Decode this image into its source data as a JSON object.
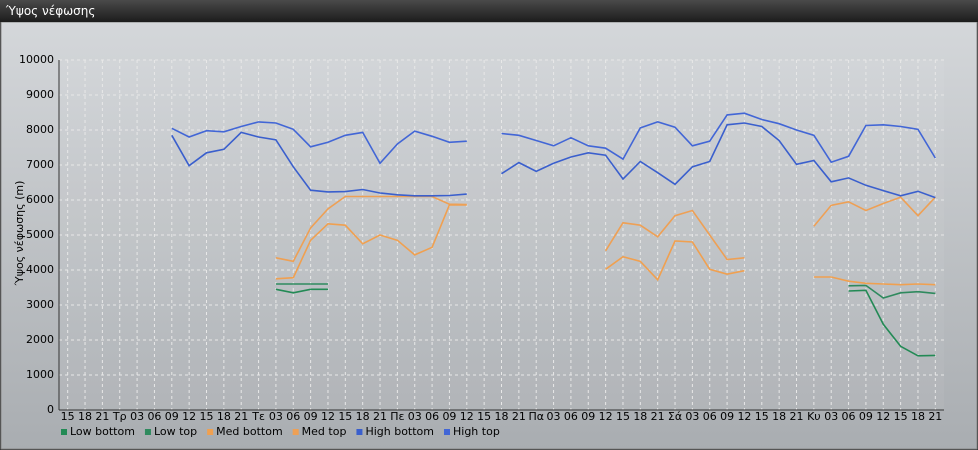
{
  "window": {
    "title": "Ύψος νέφωσης"
  },
  "chart_data": {
    "type": "line",
    "y_label": "Ύψος νέφωσης (m)",
    "categories": [
      "15",
      "18",
      "21",
      "Τρ",
      "03",
      "06",
      "09",
      "12",
      "15",
      "18",
      "21",
      "Τε",
      "03",
      "06",
      "09",
      "12",
      "15",
      "18",
      "21",
      "Πε",
      "03",
      "06",
      "09",
      "12",
      "15",
      "18",
      "21",
      "Πα",
      "03",
      "06",
      "09",
      "12",
      "15",
      "18",
      "21",
      "Σά",
      "03",
      "06",
      "09",
      "12",
      "15",
      "18",
      "21",
      "Κυ",
      "03",
      "06",
      "09",
      "12",
      "15",
      "18",
      "21"
    ],
    "ylim": [
      0,
      10000
    ],
    "yticks": [
      0,
      1000,
      2000,
      3000,
      4000,
      5000,
      6000,
      7000,
      8000,
      9000,
      10000
    ],
    "grid": true,
    "legend": "bottom",
    "series": [
      {
        "name": "Low bottom",
        "color": "#238a55",
        "values": [
          null,
          null,
          null,
          null,
          null,
          null,
          null,
          null,
          null,
          null,
          null,
          null,
          3450,
          3350,
          3450,
          3450,
          null,
          null,
          null,
          null,
          null,
          null,
          null,
          null,
          null,
          null,
          null,
          null,
          null,
          null,
          null,
          null,
          null,
          null,
          null,
          null,
          null,
          null,
          null,
          null,
          null,
          null,
          null,
          null,
          null,
          3400,
          3420,
          2450,
          1820,
          1550,
          1560
        ]
      },
      {
        "name": "Low top",
        "color": "#2f8a5e",
        "values": [
          null,
          null,
          null,
          null,
          null,
          null,
          null,
          null,
          null,
          null,
          null,
          null,
          3600,
          3600,
          3600,
          3600,
          null,
          null,
          null,
          null,
          null,
          null,
          null,
          null,
          null,
          null,
          null,
          null,
          null,
          null,
          null,
          null,
          null,
          null,
          null,
          null,
          null,
          null,
          null,
          null,
          null,
          null,
          null,
          null,
          null,
          3550,
          3560,
          3200,
          3350,
          3380,
          3330
        ]
      },
      {
        "name": "Med bottom",
        "color": "#f0a050",
        "values": [
          null,
          null,
          null,
          null,
          null,
          null,
          null,
          null,
          null,
          null,
          null,
          null,
          3750,
          3780,
          4850,
          5320,
          5280,
          4750,
          5000,
          4850,
          4430,
          4650,
          5860,
          5860,
          null,
          null,
          null,
          null,
          null,
          null,
          null,
          4020,
          4380,
          4250,
          3720,
          4830,
          4800,
          4020,
          3880,
          3980,
          null,
          null,
          null,
          3800,
          3800,
          3680,
          3620,
          3600,
          3580,
          3600,
          3580
        ]
      },
      {
        "name": "Med top",
        "color": "#eea055",
        "values": [
          null,
          null,
          null,
          null,
          null,
          null,
          null,
          null,
          null,
          null,
          null,
          null,
          4350,
          4250,
          5200,
          5750,
          6100,
          6100,
          6100,
          6100,
          6100,
          6100,
          5880,
          5870,
          null,
          null,
          null,
          null,
          null,
          null,
          null,
          4550,
          5350,
          5280,
          4950,
          5550,
          5700,
          5000,
          4300,
          4350,
          null,
          null,
          null,
          5250,
          5850,
          5950,
          5700,
          5900,
          6080,
          5550,
          6080
        ]
      },
      {
        "name": "High bottom",
        "color": "#3a5fcd",
        "values": [
          null,
          null,
          null,
          null,
          null,
          null,
          7850,
          6980,
          7350,
          7450,
          7930,
          7800,
          7720,
          6950,
          6280,
          6230,
          6240,
          6300,
          6200,
          6150,
          6120,
          6120,
          6130,
          6170,
          null,
          6750,
          7070,
          6820,
          7050,
          7230,
          7350,
          7280,
          6600,
          7100,
          6780,
          6450,
          6950,
          7100,
          8150,
          8200,
          8100,
          7700,
          7020,
          7130,
          6520,
          6630,
          6420,
          6270,
          6120,
          6250,
          6070
        ]
      },
      {
        "name": "High top",
        "color": "#4266d6",
        "values": [
          null,
          null,
          null,
          null,
          null,
          null,
          8050,
          7800,
          7980,
          7950,
          8100,
          8230,
          8200,
          8020,
          7520,
          7650,
          7850,
          7930,
          7050,
          7600,
          7970,
          7820,
          7650,
          7680,
          null,
          7900,
          7850,
          7700,
          7550,
          7780,
          7550,
          7480,
          7170,
          8060,
          8230,
          8080,
          7550,
          7680,
          8430,
          8480,
          8300,
          8180,
          8000,
          7850,
          7080,
          7250,
          8130,
          8150,
          8100,
          8020,
          7200
        ]
      }
    ]
  }
}
